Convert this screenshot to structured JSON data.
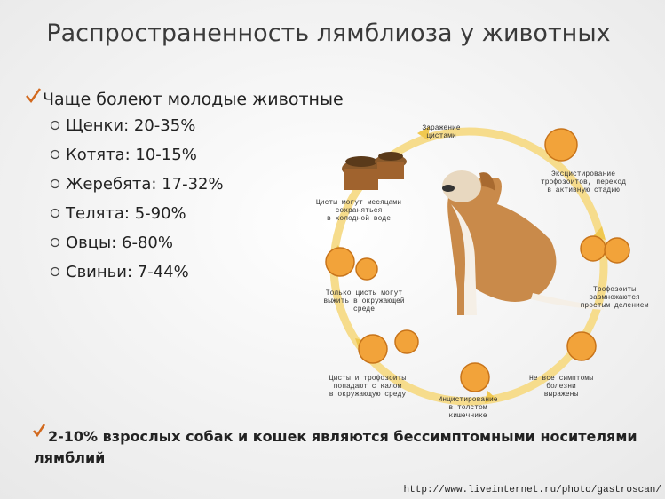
{
  "title": "Распространенность лямблиоза у животных",
  "main_point": "Чаще болеют молодые животные",
  "items": [
    "Щенки: 20-35%",
    "Котята: 10-15%",
    "Жеребята: 17-32%",
    "Телята: 5-90%",
    "Овцы: 6-80%",
    "Свиньи: 7-44%"
  ],
  "diagram": {
    "labels": [
      {
        "lines": [
          "Заражение",
          "цистами"
        ]
      },
      {
        "lines": [
          "Эксцистирование",
          "трофозоитов, переход",
          "в активную стадию"
        ]
      },
      {
        "lines": [
          "Трофозоиты",
          "размножаются",
          "простым делением"
        ]
      },
      {
        "lines": [
          "Не все симптомы",
          "болезни",
          "выражены"
        ]
      },
      {
        "lines": [
          "Инцистирование",
          "в толстом",
          "кишечнике"
        ]
      },
      {
        "lines": [
          "Цисты и трофозоиты",
          "попадают с калом",
          "в окружающую среду"
        ]
      },
      {
        "lines": [
          "Только цисты могут",
          "выжить в окружающей",
          "среде"
        ]
      },
      {
        "lines": [
          "Цисты могут месяцами",
          "сохраняться",
          "в холодной воде"
        ]
      }
    ]
  },
  "footer": {
    "lines": [
      "2-10% взрослых собак и кошек являются бессимптомными носителями",
      "лямблий"
    ]
  },
  "watermark": "http://www.liveinternet.ru/photo/gastroscan/"
}
